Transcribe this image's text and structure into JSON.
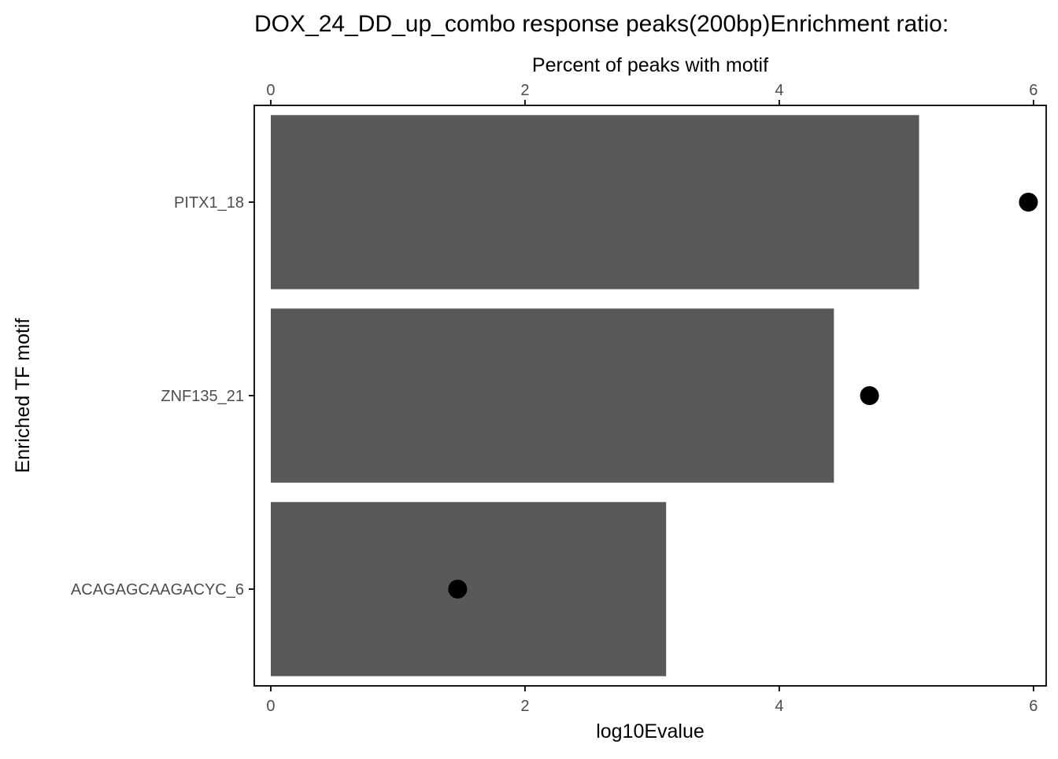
{
  "chart_data": {
    "type": "bar",
    "title": "DOX_24_DD_up_combo response peaks(200bp)Enrichment ratio:",
    "xlabel": "log10Evalue",
    "x2label": "Percent of peaks with motif",
    "ylabel": "Enriched TF motif",
    "orientation": "horizontal",
    "categories": [
      "PITX1_18",
      "ZNF135_21",
      "ACAGAGCAAGACYC_6"
    ],
    "series": [
      {
        "values": [
          5.1,
          4.43,
          3.11
        ]
      },
      {
        "values": [
          5.96,
          4.71,
          1.47
        ]
      }
    ],
    "xlim": [
      -0.13,
      6.1
    ],
    "xticks": [
      "0",
      "2",
      "4",
      "6"
    ],
    "xtick_values": [
      0,
      2,
      4,
      6
    ],
    "grid": false,
    "colors": {
      "bar": "#595959",
      "point": "#000000",
      "axis": "#000000",
      "tick_text": "#4d4d4d"
    }
  }
}
